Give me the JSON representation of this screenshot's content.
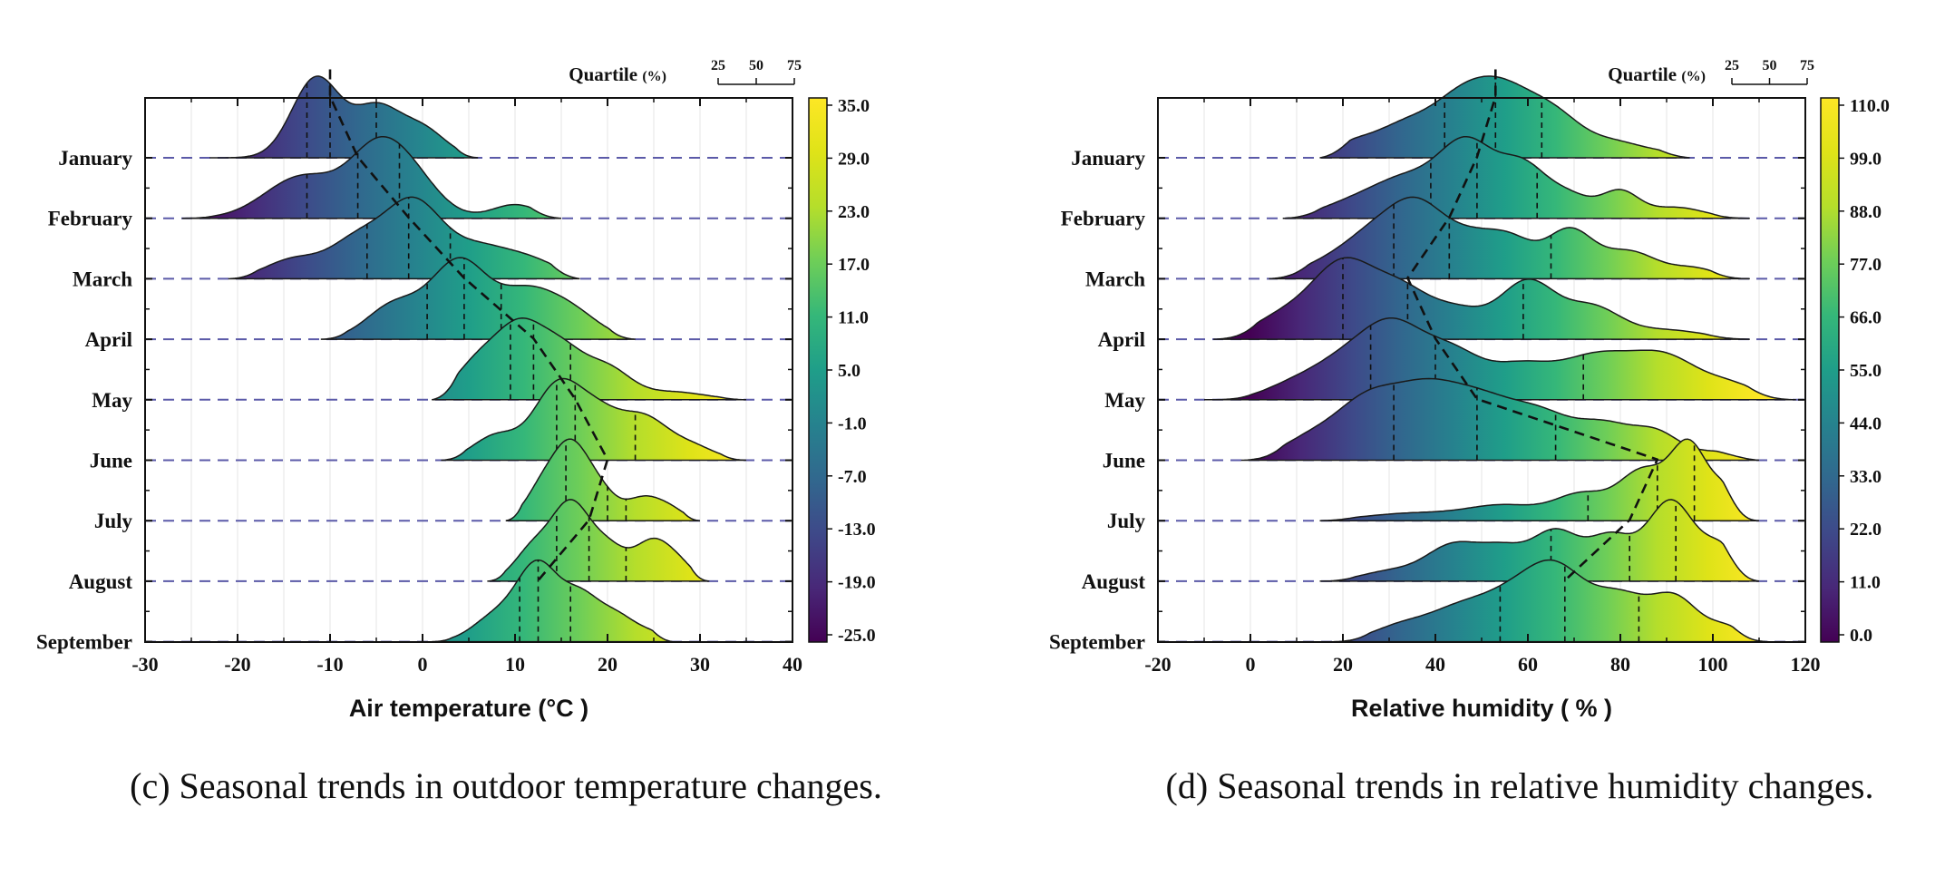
{
  "chart_data": [
    {
      "type": "ridgeline",
      "panel_id": "c",
      "caption": "(c) Seasonal trends in outdoor temperature changes.",
      "xlabel": "Air temperature (°C )",
      "xlim": [
        -30,
        40
      ],
      "xticks": [
        "-30",
        "-20",
        "-10",
        "0",
        "10",
        "20",
        "30",
        "40"
      ],
      "categories": [
        "January",
        "February",
        "March",
        "April",
        "May",
        "June",
        "July",
        "August",
        "September"
      ],
      "colorbar": {
        "range": [
          -25,
          35
        ],
        "ticks": [
          "-25.0",
          "-19.0",
          "-13.0",
          "-7.0",
          "-1.0",
          "5.0",
          "11.0",
          "17.0",
          "23.0",
          "29.0",
          "35.0"
        ],
        "colormap": "viridis"
      },
      "quartile_legend": {
        "title": "Quartile",
        "unit": "(%)",
        "labels": [
          "25",
          "50",
          "75"
        ]
      },
      "series": [
        {
          "name": "January",
          "range": [
            -23,
            6
          ],
          "peaks": [
            [
              -11.5,
              1.0,
              2.6
            ],
            [
              -5,
              0.6,
              2.5
            ],
            [
              0,
              0.35,
              2.5
            ]
          ],
          "quartiles": [
            -12.5,
            -10,
            -5
          ],
          "median": -10
        },
        {
          "name": "February",
          "range": [
            -26,
            15
          ],
          "peaks": [
            [
              -13,
              0.55,
              4.0
            ],
            [
              -5,
              0.8,
              3.0
            ],
            [
              -1,
              0.45,
              3.0
            ],
            [
              10,
              0.18,
              2.5
            ]
          ],
          "quartiles": [
            -12.5,
            -7,
            -2.5
          ],
          "median": -7
        },
        {
          "name": "March",
          "range": [
            -21,
            17
          ],
          "peaks": [
            [
              -14,
              0.25,
              3.0
            ],
            [
              -7,
              0.5,
              3.0
            ],
            [
              -1,
              0.95,
              3.0
            ],
            [
              6,
              0.4,
              3.5
            ],
            [
              12,
              0.2,
              3.0
            ]
          ],
          "quartiles": [
            -6,
            -1.5,
            3
          ],
          "median": -1.5
        },
        {
          "name": "April",
          "range": [
            -11,
            23
          ],
          "peaks": [
            [
              -3,
              0.45,
              3.0
            ],
            [
              4,
              1.0,
              3.0
            ],
            [
              11,
              0.55,
              3.0
            ],
            [
              16,
              0.35,
              3.0
            ]
          ],
          "quartiles": [
            0.5,
            4.5,
            8.5
          ],
          "median": 4.5
        },
        {
          "name": "May",
          "range": [
            1,
            35
          ],
          "peaks": [
            [
              6,
              0.55,
              2.5
            ],
            [
              10.5,
              1.0,
              2.5
            ],
            [
              15,
              0.7,
              2.5
            ],
            [
              20,
              0.45,
              2.5
            ],
            [
              27,
              0.12,
              3.5
            ]
          ],
          "quartiles": [
            9.5,
            12,
            16
          ],
          "median": 12
        },
        {
          "name": "June",
          "range": [
            2,
            35
          ],
          "peaks": [
            [
              8,
              0.35,
              2.5
            ],
            [
              14.5,
              1.0,
              2.5
            ],
            [
              19,
              0.6,
              2.5
            ],
            [
              24,
              0.55,
              2.5
            ],
            [
              29,
              0.2,
              2.5
            ]
          ],
          "quartiles": [
            14.5,
            16.5,
            23
          ],
          "median": 16.5
        },
        {
          "name": "July",
          "range": [
            9,
            30
          ],
          "peaks": [
            [
              13,
              0.5,
              1.8
            ],
            [
              16,
              1.0,
              1.8
            ],
            [
              19,
              0.45,
              1.8
            ],
            [
              24,
              0.35,
              2.0
            ],
            [
              27,
              0.12,
              1.5
            ]
          ],
          "quartiles": [
            15.5,
            20,
            22
          ],
          "median": 20
        },
        {
          "name": "August",
          "range": [
            7,
            31
          ],
          "peaks": [
            [
              12,
              0.45,
              2.0
            ],
            [
              16,
              1.0,
              2.0
            ],
            [
              20,
              0.45,
              2.0
            ],
            [
              25,
              0.55,
              2.0
            ],
            [
              28,
              0.15,
              1.5
            ]
          ],
          "quartiles": [
            14.5,
            18,
            22
          ],
          "median": 18
        },
        {
          "name": "September",
          "range": [
            1,
            27
          ],
          "peaks": [
            [
              8,
              0.35,
              2.5
            ],
            [
              12.5,
              1.0,
              2.2
            ],
            [
              17,
              0.55,
              2.0
            ],
            [
              21,
              0.35,
              2.2
            ],
            [
              25,
              0.08,
              1.5
            ]
          ],
          "quartiles": [
            10.5,
            12.5,
            16
          ],
          "median": 12.5
        }
      ]
    },
    {
      "type": "ridgeline",
      "panel_id": "d",
      "caption": "(d) Seasonal trends in relative humidity changes.",
      "xlabel": "Relative humidity ( % )",
      "xlim": [
        -20,
        120
      ],
      "xticks": [
        "-20",
        "0",
        "20",
        "40",
        "60",
        "80",
        "100",
        "120"
      ],
      "categories": [
        "January",
        "February",
        "March",
        "April",
        "May",
        "June",
        "July",
        "August",
        "September"
      ],
      "colorbar": {
        "range": [
          0,
          110
        ],
        "ticks": [
          "0.0",
          "11.0",
          "22.0",
          "33.0",
          "44.0",
          "55.0",
          "66.0",
          "77.0",
          "88.0",
          "99.0",
          "110.0"
        ],
        "colormap": "viridis"
      },
      "quartile_legend": {
        "title": "Quartile",
        "unit": "(%)",
        "labels": [
          "25",
          "50",
          "75"
        ]
      },
      "series": [
        {
          "name": "January",
          "range": [
            15,
            95
          ],
          "peaks": [
            [
              22,
              0.2,
              5.0
            ],
            [
              33,
              0.45,
              6.0
            ],
            [
              44,
              0.6,
              6.0
            ],
            [
              54,
              1.0,
              7.0
            ],
            [
              66,
              0.55,
              6.0
            ],
            [
              79,
              0.22,
              6.0
            ],
            [
              90,
              0.06,
              5.0
            ]
          ],
          "quartiles": [
            42,
            53,
            63
          ],
          "median": 53
        },
        {
          "name": "February",
          "range": [
            7,
            108
          ],
          "peaks": [
            [
              22,
              0.2,
              7.0
            ],
            [
              34,
              0.5,
              7.0
            ],
            [
              47,
              1.0,
              6.0
            ],
            [
              59,
              0.65,
              5.0
            ],
            [
              69,
              0.3,
              5.0
            ],
            [
              80,
              0.35,
              4.0
            ],
            [
              92,
              0.15,
              6.0
            ]
          ],
          "quartiles": [
            39,
            49,
            62
          ],
          "median": 49
        },
        {
          "name": "March",
          "range": [
            4,
            108
          ],
          "peaks": [
            [
              16,
              0.2,
              6.0
            ],
            [
              26,
              0.55,
              6.0
            ],
            [
              36,
              1.0,
              6.0
            ],
            [
              48,
              0.55,
              6.0
            ],
            [
              57,
              0.45,
              5.0
            ],
            [
              69,
              0.7,
              5.0
            ],
            [
              82,
              0.4,
              6.0
            ],
            [
              96,
              0.15,
              5.0
            ]
          ],
          "quartiles": [
            31,
            43,
            65
          ],
          "median": 43
        },
        {
          "name": "April",
          "range": [
            -8,
            108
          ],
          "peaks": [
            [
              6,
              0.25,
              6.0
            ],
            [
              20,
              1.0,
              7.0
            ],
            [
              33,
              0.55,
              6.0
            ],
            [
              45,
              0.35,
              6.0
            ],
            [
              60,
              0.75,
              6.0
            ],
            [
              74,
              0.4,
              6.0
            ],
            [
              90,
              0.12,
              8.0
            ]
          ],
          "quartiles": [
            20,
            34,
            59
          ],
          "median": 34
        },
        {
          "name": "May",
          "range": [
            -10,
            118
          ],
          "peaks": [
            [
              8,
              0.15,
              6.0
            ],
            [
              19,
              0.45,
              7.0
            ],
            [
              31,
              1.0,
              7.0
            ],
            [
              44,
              0.55,
              6.0
            ],
            [
              58,
              0.45,
              7.0
            ],
            [
              75,
              0.6,
              8.0
            ],
            [
              90,
              0.55,
              7.0
            ],
            [
              104,
              0.2,
              6.0
            ]
          ],
          "quartiles": [
            26,
            40,
            72
          ],
          "median": 40
        },
        {
          "name": "June",
          "range": [
            -2,
            110
          ],
          "peaks": [
            [
              12,
              0.25,
              6.0
            ],
            [
              25,
              0.8,
              7.0
            ],
            [
              38,
              0.85,
              7.0
            ],
            [
              50,
              0.7,
              7.0
            ],
            [
              63,
              0.6,
              7.0
            ],
            [
              77,
              0.45,
              6.0
            ],
            [
              88,
              0.35,
              5.0
            ],
            [
              102,
              0.12,
              6.0
            ]
          ],
          "quartiles": [
            31,
            49,
            66
          ],
          "median": 49
        },
        {
          "name": "July",
          "range": [
            15,
            110
          ],
          "peaks": [
            [
              35,
              0.1,
              10.0
            ],
            [
              55,
              0.2,
              8.0
            ],
            [
              72,
              0.35,
              6.0
            ],
            [
              85,
              0.65,
              5.0
            ],
            [
              95,
              1.0,
              4.0
            ],
            [
              103,
              0.35,
              3.0
            ]
          ],
          "quartiles": [
            73,
            88,
            96
          ],
          "median": 88
        },
        {
          "name": "August",
          "range": [
            15,
            110
          ],
          "peaks": [
            [
              30,
              0.12,
              6.0
            ],
            [
              44,
              0.45,
              6.0
            ],
            [
              55,
              0.35,
              5.0
            ],
            [
              66,
              0.6,
              5.0
            ],
            [
              78,
              0.55,
              5.0
            ],
            [
              91,
              1.0,
              5.0
            ],
            [
              102,
              0.4,
              4.0
            ]
          ],
          "quartiles": [
            65,
            82,
            92
          ],
          "median": 82
        },
        {
          "name": "September",
          "range": [
            18,
            112
          ],
          "peaks": [
            [
              32,
              0.25,
              6.0
            ],
            [
              45,
              0.55,
              7.0
            ],
            [
              58,
              0.8,
              7.0
            ],
            [
              67,
              1.0,
              6.0
            ],
            [
              80,
              0.8,
              6.0
            ],
            [
              92,
              0.75,
              5.0
            ],
            [
              103,
              0.25,
              4.0
            ]
          ],
          "quartiles": [
            54,
            68,
            84
          ],
          "median": 68
        }
      ]
    }
  ]
}
